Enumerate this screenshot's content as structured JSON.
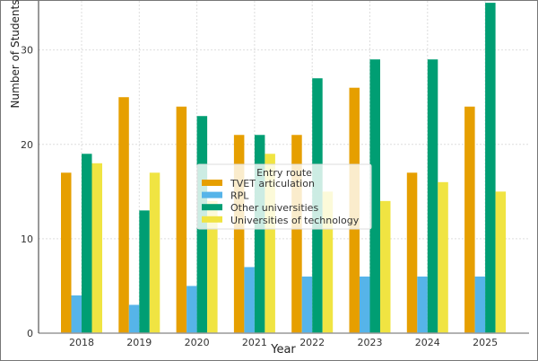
{
  "chart_data": {
    "type": "bar",
    "categories": [
      "2018",
      "2019",
      "2020",
      "2021",
      "2022",
      "2023",
      "2024",
      "2025"
    ],
    "series": [
      {
        "name": "TVET articulation",
        "color": "#E69F00",
        "values": [
          17,
          25,
          24,
          21,
          21,
          26,
          17,
          24
        ]
      },
      {
        "name": "RPL",
        "color": "#56B4E9",
        "values": [
          4,
          3,
          5,
          7,
          6,
          6,
          6,
          6
        ]
      },
      {
        "name": "Other universities",
        "color": "#009E73",
        "values": [
          19,
          13,
          23,
          21,
          27,
          29,
          29,
          35
        ]
      },
      {
        "name": "Universities of technology",
        "color": "#F0E442",
        "values": [
          18,
          17,
          14,
          19,
          15,
          14,
          16,
          15
        ]
      }
    ],
    "title": "",
    "xlabel": "Year",
    "ylabel": "Number of Students",
    "ylim": [
      0,
      35.2
    ],
    "yticks": [
      "0",
      "10",
      "20",
      "30"
    ],
    "grid": true,
    "legend": {
      "title": "Entry route",
      "placement": "center"
    }
  }
}
